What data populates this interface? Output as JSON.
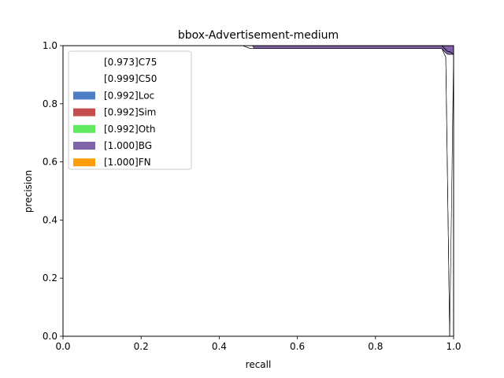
{
  "chart_data": {
    "type": "area",
    "title": "bbox-Advertisement-medium",
    "xlabel": "recall",
    "ylabel": "precision",
    "xlim": [
      0,
      1
    ],
    "ylim": [
      0,
      1
    ],
    "xticks": [
      "0.0",
      "0.2",
      "0.4",
      "0.6",
      "0.8",
      "1.0"
    ],
    "yticks": [
      "0.0",
      "0.2",
      "0.4",
      "0.6",
      "0.8",
      "1.0"
    ],
    "grid": false,
    "legend_position": "top-left",
    "series": [
      {
        "name": "[0.973]C75",
        "color": "#ffffff",
        "outline": "#000000",
        "points": [
          [
            0,
            1
          ],
          [
            0.46,
            1
          ],
          [
            0.48,
            0.99
          ],
          [
            0.97,
            0.99
          ],
          [
            0.98,
            0.96
          ],
          [
            0.99,
            0
          ]
        ]
      },
      {
        "name": "[0.999]C50",
        "color": "#ffffff",
        "outline": "#000000",
        "points": [
          [
            0,
            1
          ],
          [
            0.97,
            1
          ],
          [
            0.985,
            0.98
          ],
          [
            0.99,
            0.98
          ],
          [
            1.0,
            0.97
          ]
        ]
      },
      {
        "name": "[0.992]Loc",
        "color": "#4c7fc6",
        "points": [
          [
            0,
            1
          ],
          [
            0.97,
            1
          ],
          [
            0.985,
            0.98
          ],
          [
            0.99,
            0.98
          ],
          [
            1.0,
            0.97
          ]
        ]
      },
      {
        "name": "[0.992]Sim",
        "color": "#c44e4e",
        "points": [
          [
            0,
            1
          ],
          [
            0.97,
            1
          ],
          [
            0.985,
            0.98
          ],
          [
            0.99,
            0.98
          ],
          [
            1.0,
            0.97
          ]
        ]
      },
      {
        "name": "[0.992]Oth",
        "color": "#5ee95e",
        "points": [
          [
            0,
            1
          ],
          [
            0.97,
            1
          ],
          [
            0.985,
            0.98
          ],
          [
            0.99,
            0.98
          ],
          [
            1.0,
            0.97
          ]
        ]
      },
      {
        "name": "[1.000]BG",
        "color": "#8063a8",
        "points": [
          [
            0,
            1
          ],
          [
            1.0,
            1
          ]
        ]
      },
      {
        "name": "[1.000]FN",
        "color": "#ff9e0a",
        "points": [
          [
            0,
            1
          ],
          [
            1.0,
            1
          ]
        ]
      }
    ],
    "bands": [
      {
        "between": [
          "[0.973]C75",
          "[0.999]C50"
        ],
        "color": "#ffffff",
        "upper": [
          [
            0.46,
            1
          ],
          [
            0.97,
            1
          ],
          [
            0.985,
            0.98
          ],
          [
            0.99,
            0.98
          ],
          [
            1.0,
            0.97
          ]
        ],
        "lower": [
          [
            0.46,
            1
          ],
          [
            0.48,
            0.99
          ],
          [
            0.97,
            0.99
          ],
          [
            0.98,
            0.96
          ],
          [
            0.99,
            0
          ]
        ]
      },
      {
        "between": [
          "[0.992]Oth",
          "[1.000]BG"
        ],
        "color": "#8063a8",
        "upper": [
          [
            0.485,
            1
          ],
          [
            1.0,
            1
          ]
        ],
        "lower": [
          [
            0.485,
            1
          ],
          [
            0.49,
            0.99
          ],
          [
            0.96,
            0.99
          ],
          [
            0.97,
            0.99
          ],
          [
            0.98,
            0.975
          ],
          [
            0.985,
            0.97
          ],
          [
            1.0,
            0.97
          ]
        ]
      }
    ]
  }
}
